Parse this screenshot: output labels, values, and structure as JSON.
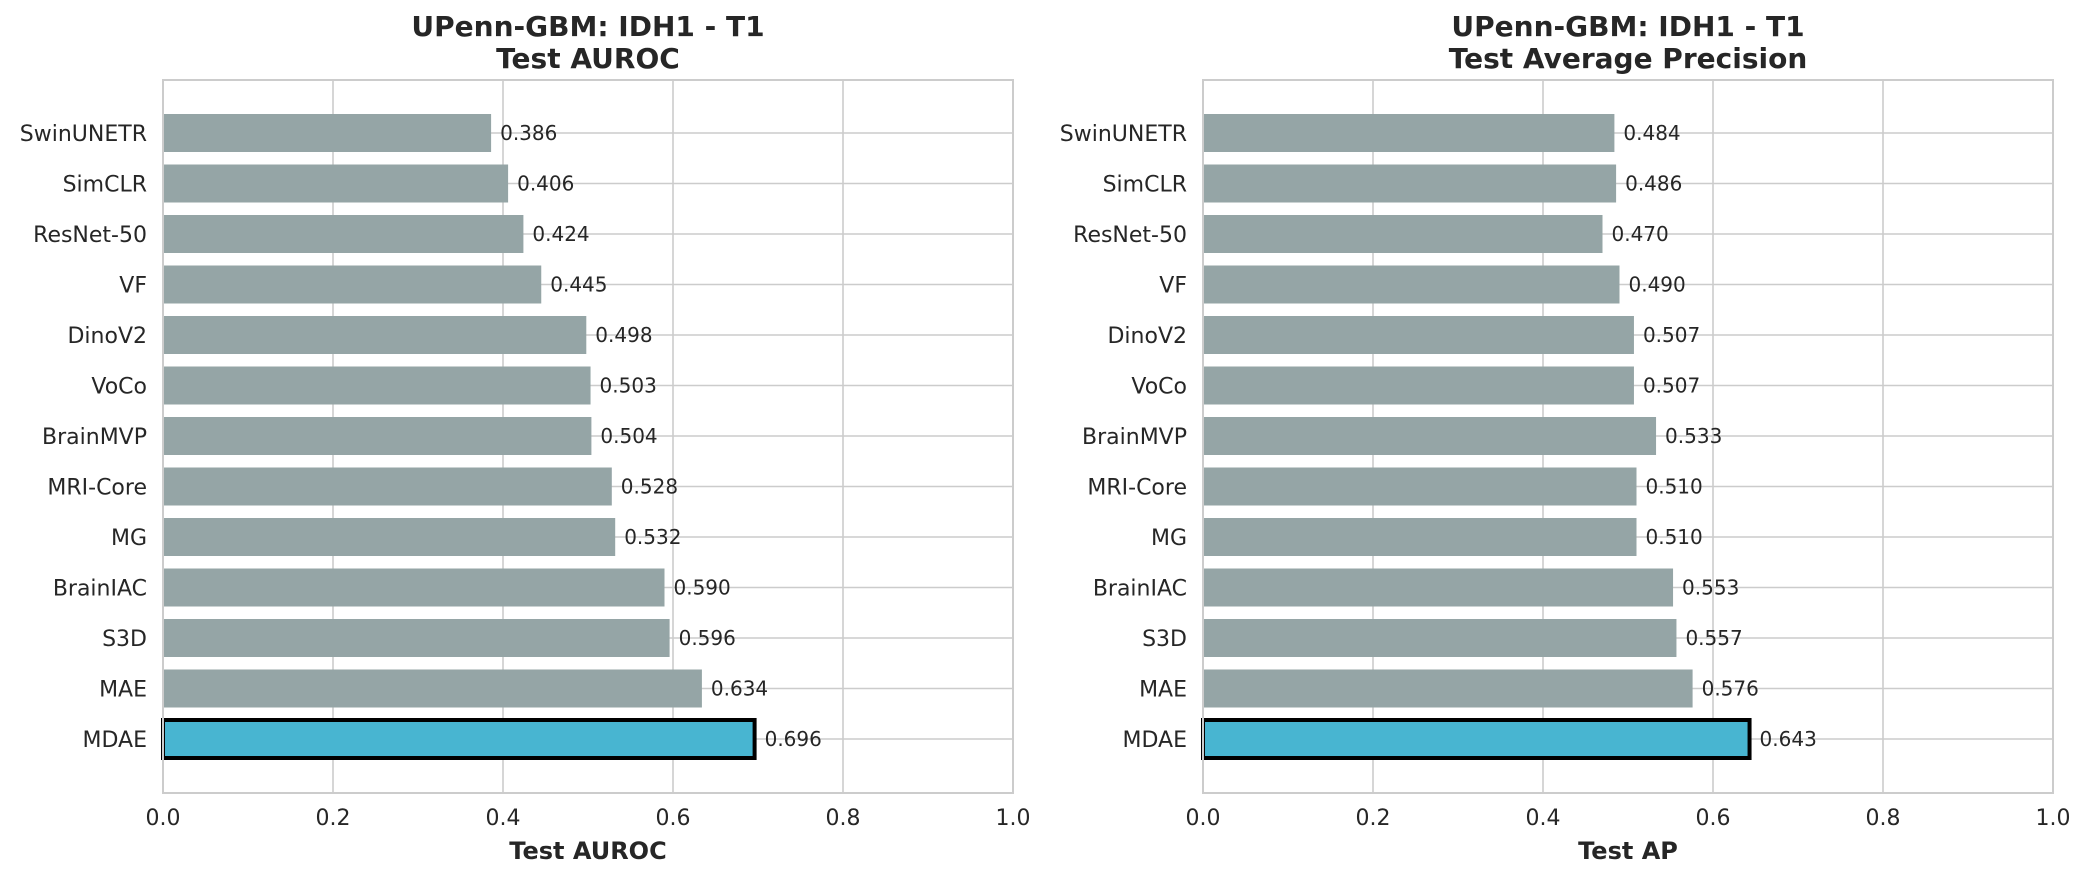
{
  "chart_data": [
    {
      "type": "bar",
      "orientation": "horizontal",
      "title": [
        "UPenn-GBM: IDH1 - T1",
        "Test AUROC"
      ],
      "xlabel": "Test AUROC",
      "ylabel": "",
      "xlim": [
        0,
        1
      ],
      "xticks": [
        "0.0",
        "0.2",
        "0.4",
        "0.6",
        "0.8",
        "1.0"
      ],
      "grid": true,
      "categories": [
        "SwinUNETR",
        "SimCLR",
        "ResNet-50",
        "VF",
        "DinoV2",
        "VoCo",
        "BrainMVP",
        "MRI-Core",
        "MG",
        "BrainIAC",
        "S3D",
        "MAE",
        "MDAE"
      ],
      "values": [
        0.386,
        0.406,
        0.424,
        0.445,
        0.498,
        0.503,
        0.504,
        0.528,
        0.532,
        0.59,
        0.596,
        0.634,
        0.696
      ],
      "value_labels": [
        "0.386",
        "0.406",
        "0.424",
        "0.445",
        "0.498",
        "0.503",
        "0.504",
        "0.528",
        "0.532",
        "0.590",
        "0.596",
        "0.634",
        "0.696"
      ],
      "highlight": "MDAE",
      "colors": {
        "bar": "#95a5a6",
        "highlight": "#48b5d1",
        "highlight_edge": "#000000"
      }
    },
    {
      "type": "bar",
      "orientation": "horizontal",
      "title": [
        "UPenn-GBM: IDH1 - T1",
        "Test Average Precision"
      ],
      "xlabel": "Test AP",
      "ylabel": "",
      "xlim": [
        0,
        1
      ],
      "xticks": [
        "0.0",
        "0.2",
        "0.4",
        "0.6",
        "0.8",
        "1.0"
      ],
      "grid": true,
      "categories": [
        "SwinUNETR",
        "SimCLR",
        "ResNet-50",
        "VF",
        "DinoV2",
        "VoCo",
        "BrainMVP",
        "MRI-Core",
        "MG",
        "BrainIAC",
        "S3D",
        "MAE",
        "MDAE"
      ],
      "values": [
        0.484,
        0.486,
        0.47,
        0.49,
        0.507,
        0.507,
        0.533,
        0.51,
        0.51,
        0.553,
        0.557,
        0.576,
        0.643
      ],
      "value_labels": [
        "0.484",
        "0.486",
        "0.470",
        "0.490",
        "0.507",
        "0.507",
        "0.533",
        "0.510",
        "0.510",
        "0.553",
        "0.557",
        "0.576",
        "0.643"
      ],
      "highlight": "MDAE",
      "colors": {
        "bar": "#95a5a6",
        "highlight": "#48b5d1",
        "highlight_edge": "#000000"
      }
    }
  ]
}
